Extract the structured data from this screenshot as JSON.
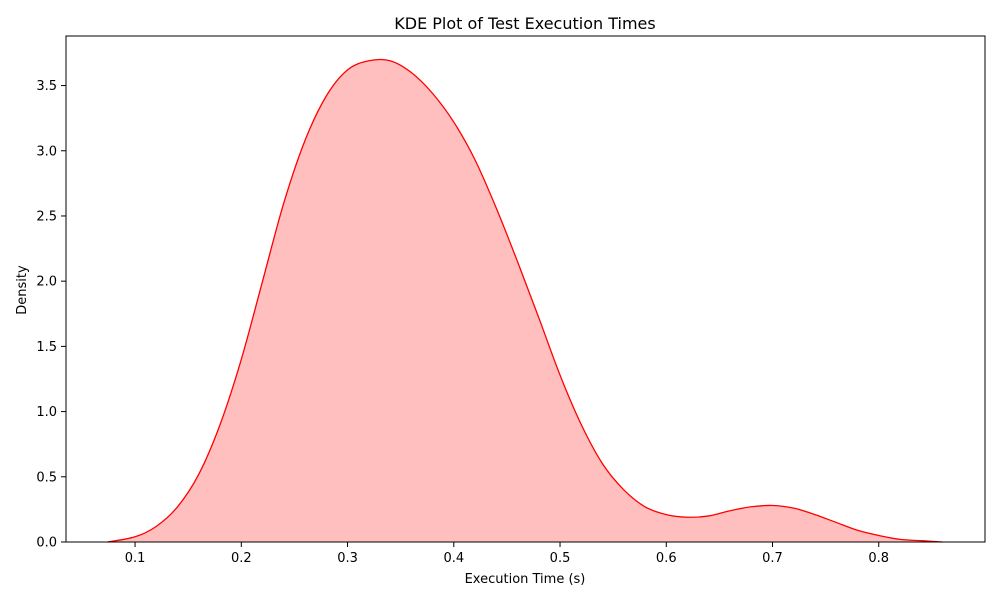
{
  "chart_data": {
    "type": "area",
    "title": "KDE Plot of Test Execution Times",
    "xlabel": "Execution Time (s)",
    "ylabel": "Density",
    "xlim": [
      0.035,
      0.9
    ],
    "ylim": [
      0,
      3.88
    ],
    "xticks": [
      0.1,
      0.2,
      0.3,
      0.4,
      0.5,
      0.6,
      0.7,
      0.8
    ],
    "xtick_labels": [
      "0.1",
      "0.2",
      "0.3",
      "0.4",
      "0.5",
      "0.6",
      "0.7",
      "0.8"
    ],
    "yticks": [
      0,
      0.5,
      1.0,
      1.5,
      2.0,
      2.5,
      3.0,
      3.5
    ],
    "ytick_labels": [
      "0.0",
      "0.5",
      "1.0",
      "1.5",
      "2.0",
      "2.5",
      "3.0",
      "3.5"
    ],
    "grid": false,
    "series": [
      {
        "line_color": "#ff0000",
        "fill_color": "#ff0000",
        "fill_opacity": 0.25,
        "x": [
          0.074,
          0.1,
          0.12,
          0.14,
          0.16,
          0.18,
          0.2,
          0.22,
          0.24,
          0.26,
          0.28,
          0.3,
          0.32,
          0.34,
          0.36,
          0.38,
          0.4,
          0.42,
          0.44,
          0.46,
          0.48,
          0.5,
          0.52,
          0.54,
          0.56,
          0.58,
          0.6,
          0.62,
          0.64,
          0.66,
          0.68,
          0.7,
          0.72,
          0.74,
          0.76,
          0.78,
          0.8,
          0.82,
          0.84,
          0.86
        ],
        "y": [
          0.0,
          0.04,
          0.12,
          0.27,
          0.52,
          0.9,
          1.4,
          2.0,
          2.6,
          3.08,
          3.42,
          3.62,
          3.69,
          3.69,
          3.6,
          3.44,
          3.22,
          2.93,
          2.56,
          2.15,
          1.72,
          1.28,
          0.9,
          0.6,
          0.4,
          0.27,
          0.21,
          0.19,
          0.2,
          0.24,
          0.27,
          0.28,
          0.26,
          0.21,
          0.15,
          0.09,
          0.05,
          0.02,
          0.01,
          0.0
        ]
      }
    ]
  }
}
